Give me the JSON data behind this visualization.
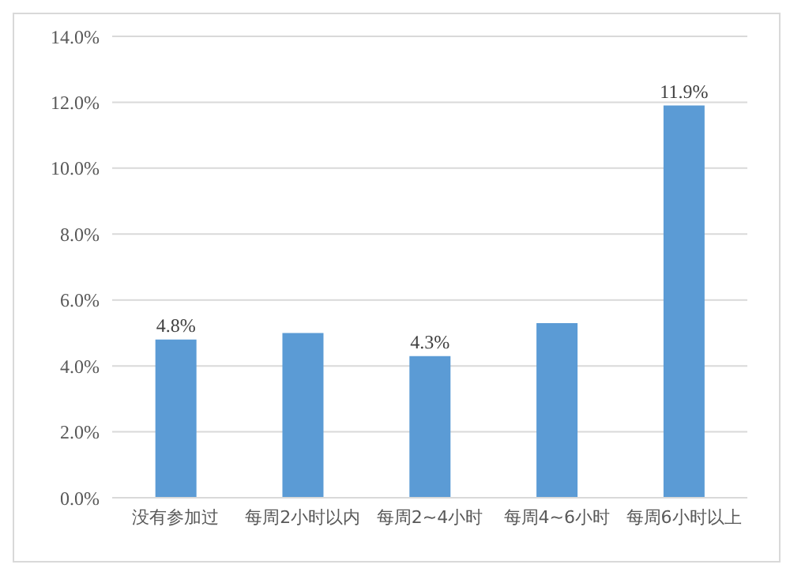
{
  "chart_data": {
    "type": "bar",
    "categories": [
      "没有参加过",
      "每周2小时以内",
      "每周2~4小时",
      "每周4~6小时",
      "每周6小时以上"
    ],
    "values": [
      4.8,
      5.0,
      4.3,
      5.3,
      11.9
    ],
    "value_labels": [
      "4.8%",
      null,
      "4.3%",
      null,
      "11.9%"
    ],
    "color": "#5b9bd5",
    "ylim": [
      0,
      14
    ],
    "yticks": [
      {
        "value": 0,
        "label": "0.0%"
      },
      {
        "value": 2,
        "label": "2.0%"
      },
      {
        "value": 4,
        "label": "4.0%"
      },
      {
        "value": 6,
        "label": "6.0%"
      },
      {
        "value": 8,
        "label": "8.0%"
      },
      {
        "value": 10,
        "label": "10.0%"
      },
      {
        "value": 12,
        "label": "12.0%"
      },
      {
        "value": 14,
        "label": "14.0%"
      }
    ],
    "grid": "y"
  }
}
